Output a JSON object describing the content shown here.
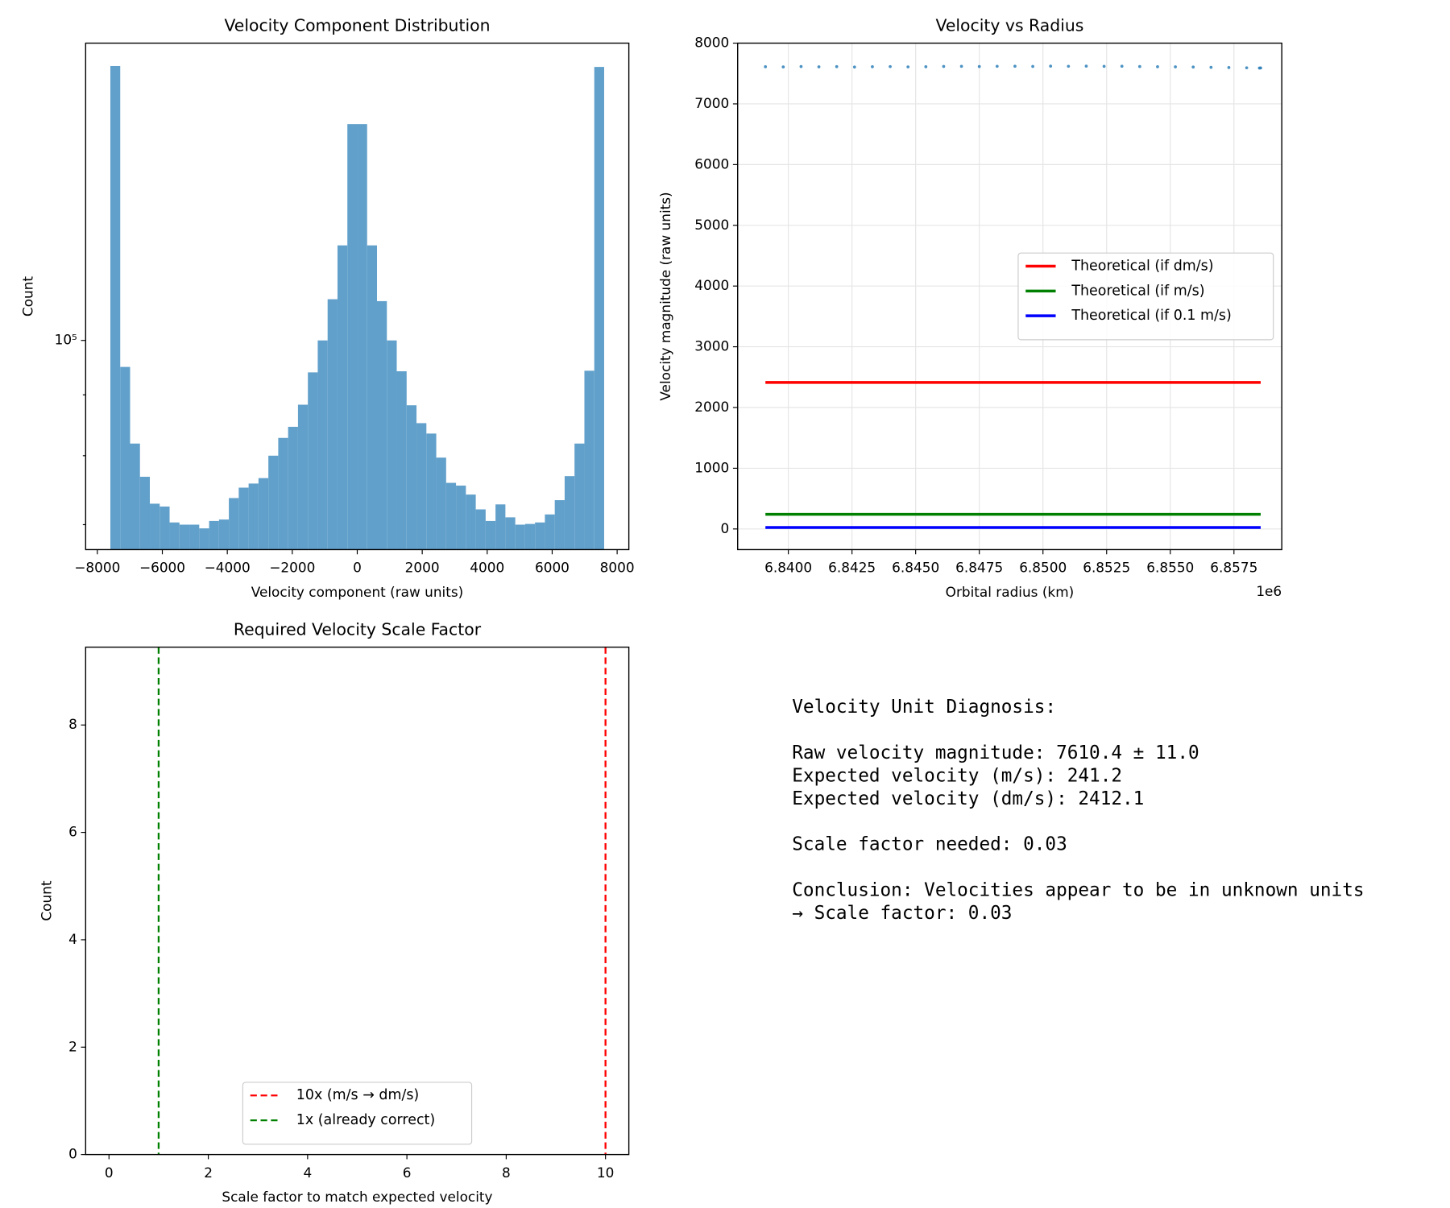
{
  "chart_data": [
    {
      "type": "histogram",
      "title": "Velocity Component Distribution",
      "x_label": "Velocity component (raw units)",
      "y_label": "Count",
      "bins": [
        -7600,
        -7296,
        -6992,
        -6688,
        -6384,
        -6080,
        -5776,
        -5472,
        -5168,
        -4864,
        -4560,
        -4256,
        -3952,
        -3648,
        -3344,
        -3040,
        -2736,
        -2432,
        -2128,
        -1824,
        -1520,
        -1216,
        -912,
        -608,
        -304,
        0,
        304,
        608,
        912,
        1216,
        1520,
        1824,
        2128,
        2432,
        2736,
        3040,
        3344,
        3648,
        3952,
        4256,
        4560,
        4864,
        5168,
        5472,
        5776,
        6080,
        6384,
        6688,
        6992,
        7296,
        7600
      ],
      "values": [
        170100,
        95000,
        81900,
        76800,
        72900,
        72500,
        70300,
        70000,
        70000,
        69500,
        70500,
        70700,
        73700,
        75200,
        75800,
        76600,
        80000,
        82800,
        84600,
        88300,
        94000,
        100000,
        108300,
        120200,
        152000,
        152000,
        120200,
        107900,
        100000,
        94200,
        88200,
        85200,
        83500,
        79700,
        75900,
        75500,
        74200,
        72100,
        70500,
        72800,
        71000,
        70000,
        70100,
        70300,
        71400,
        73400,
        76900,
        81900,
        94300,
        169800
      ],
      "color": "#61a0cb",
      "yscale": "log",
      "xlim": [
        -8360,
        8360
      ],
      "ylim": [
        66700,
        177800
      ],
      "xticks": [
        {
          "value": -8000,
          "label": "−8000"
        },
        {
          "value": -6000,
          "label": "−6000"
        },
        {
          "value": -4000,
          "label": "−4000"
        },
        {
          "value": -2000,
          "label": "−2000"
        },
        0,
        2000,
        4000,
        6000,
        8000
      ],
      "yticks": [
        {
          "value": 100000,
          "label": "10⁵"
        }
      ],
      "yminorticks": [
        70000,
        80000,
        90000
      ]
    },
    {
      "type": "line",
      "title": "Velocity vs Radius",
      "x_label": "Orbital radius (km)",
      "y_label": "Velocity magnitude (raw units)",
      "x_offset_label": "1e6",
      "points": {
        "color": "#1f77b4",
        "x": [
          6839100,
          6839800,
          6840500,
          6841200,
          6841900,
          6842600,
          6843300,
          6844000,
          6844700,
          6845400,
          6846100,
          6846800,
          6847500,
          6848200,
          6848900,
          6849600,
          6850300,
          6851000,
          6851700,
          6852400,
          6853100,
          6853800,
          6854500,
          6855200,
          6855900,
          6856600,
          6857300,
          6858000,
          6858500,
          6858550
        ],
        "values": [
          7612,
          7608,
          7615,
          7610,
          7613,
          7607,
          7611,
          7614,
          7609,
          7612,
          7616,
          7618,
          7615,
          7619,
          7620,
          7617,
          7621,
          7619,
          7622,
          7618,
          7620,
          7615,
          7612,
          7610,
          7606,
          7602,
          7598,
          7594,
          7590,
          7592
        ]
      },
      "series": [
        {
          "name": "Theoretical (if dm/s)",
          "color": "#ff0000",
          "x": [
            6839100,
            6858550
          ],
          "values": [
            2412.1,
            2412.1
          ]
        },
        {
          "name": "Theoretical (if m/s)",
          "color": "#008000",
          "x": [
            6839100,
            6858550
          ],
          "values": [
            241.2,
            241.2
          ]
        },
        {
          "name": "Theoretical (if 0.1 m/s)",
          "color": "#0000ff",
          "x": [
            6839100,
            6858550
          ],
          "values": [
            24.1,
            24.1
          ]
        }
      ],
      "xlim": [
        6838010,
        6859379
      ],
      "ylim": [
        -340,
        8000
      ],
      "xticks": [
        {
          "value": 6840000,
          "label": "6.8400"
        },
        {
          "value": 6842500,
          "label": "6.8425"
        },
        {
          "value": 6845000,
          "label": "6.8450"
        },
        {
          "value": 6847500,
          "label": "6.8475"
        },
        {
          "value": 6850000,
          "label": "6.8500"
        },
        {
          "value": 6852500,
          "label": "6.8525"
        },
        {
          "value": 6855000,
          "label": "6.8550"
        },
        {
          "value": 6857500,
          "label": "6.8575"
        }
      ],
      "yticks": [
        0,
        1000,
        2000,
        3000,
        4000,
        5000,
        6000,
        7000,
        8000
      ],
      "grid": true,
      "legend": "center right"
    },
    {
      "type": "vlines",
      "title": "Required Velocity Scale Factor",
      "x_label": "Scale factor to match expected velocity",
      "y_label": "Count",
      "lines": [
        {
          "name": "10x (m/s → dm/s)",
          "color": "#ff0000",
          "x": 10
        },
        {
          "name": "1x (already correct)",
          "color": "#008000",
          "x": 1
        }
      ],
      "xlim": [
        -0.47,
        10.47
      ],
      "ylim": [
        0,
        9.45
      ],
      "xticks": [
        0,
        2,
        4,
        6,
        8,
        10
      ],
      "yticks": [
        0,
        2,
        4,
        6,
        8
      ],
      "legend": "lower center"
    }
  ],
  "diagnosis": {
    "paragraphs": [
      [
        "Velocity Unit Diagnosis:"
      ],
      [
        "Raw velocity magnitude: 7610.4 ± 11.0",
        "Expected velocity (m/s): 241.2",
        "Expected velocity (dm/s): 2412.1"
      ],
      [
        "Scale factor needed: 0.03"
      ],
      [
        "Conclusion: Velocities appear to be in unknown units",
        "→ Scale factor: 0.03"
      ]
    ]
  }
}
